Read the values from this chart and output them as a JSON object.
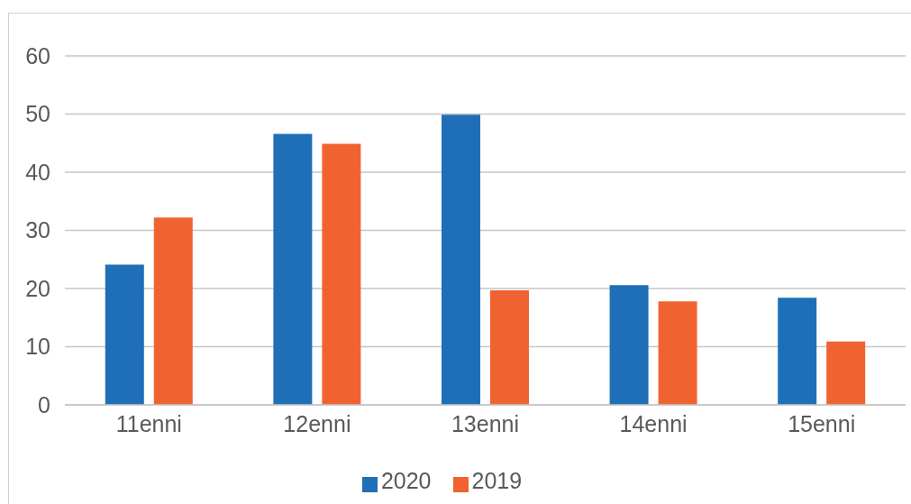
{
  "chart_data": {
    "type": "bar",
    "categories": [
      "11enni",
      "12enni",
      "13enni",
      "14enni",
      "15enni"
    ],
    "series": [
      {
        "name": "2020",
        "color": "#1f6fb8",
        "values": [
          24.1,
          46.6,
          49.9,
          20.6,
          18.4
        ]
      },
      {
        "name": "2019",
        "color": "#f06331",
        "values": [
          32.2,
          44.9,
          19.7,
          17.8,
          10.9
        ]
      }
    ],
    "ylim": [
      0,
      60
    ],
    "yticks": [
      0,
      10,
      20,
      30,
      40,
      50,
      60
    ],
    "grid": "y",
    "legend": "bottom"
  }
}
